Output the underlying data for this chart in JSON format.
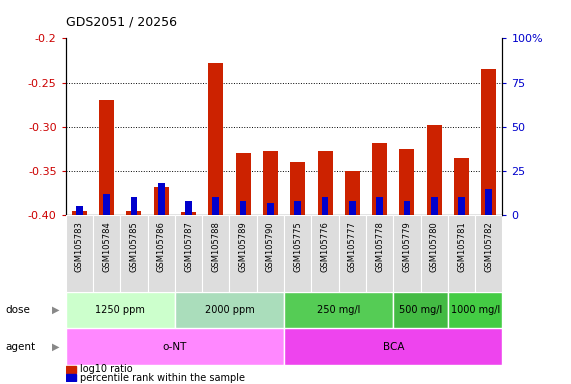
{
  "title": "GDS2051 / 20256",
  "samples": [
    "GSM105783",
    "GSM105784",
    "GSM105785",
    "GSM105786",
    "GSM105787",
    "GSM105788",
    "GSM105789",
    "GSM105790",
    "GSM105775",
    "GSM105776",
    "GSM105777",
    "GSM105778",
    "GSM105779",
    "GSM105780",
    "GSM105781",
    "GSM105782"
  ],
  "log10_ratio": [
    -0.395,
    -0.27,
    -0.395,
    -0.368,
    -0.397,
    -0.228,
    -0.33,
    -0.328,
    -0.34,
    -0.328,
    -0.35,
    -0.318,
    -0.325,
    -0.298,
    -0.335,
    -0.235
  ],
  "percentile_rank": [
    5,
    12,
    10,
    18,
    8,
    10,
    8,
    7,
    8,
    10,
    8,
    10,
    8,
    10,
    10,
    15
  ],
  "ylim_left": [
    -0.4,
    -0.2
  ],
  "ylim_right": [
    0,
    100
  ],
  "yticks_left": [
    -0.4,
    -0.35,
    -0.3,
    -0.25,
    -0.2
  ],
  "yticks_right": [
    0,
    25,
    50,
    75,
    100
  ],
  "ytick_labels_right": [
    "0",
    "25",
    "50",
    "75",
    "100%"
  ],
  "dose_groups": [
    {
      "label": "1250 ppm",
      "start": 0,
      "end": 4,
      "color": "#ccffcc"
    },
    {
      "label": "2000 ppm",
      "start": 4,
      "end": 8,
      "color": "#aaddbb"
    },
    {
      "label": "250 mg/l",
      "start": 8,
      "end": 12,
      "color": "#55cc55"
    },
    {
      "label": "500 mg/l",
      "start": 12,
      "end": 14,
      "color": "#44bb44"
    },
    {
      "label": "1000 mg/l",
      "start": 14,
      "end": 16,
      "color": "#44cc44"
    }
  ],
  "agent_groups": [
    {
      "label": "o-NT",
      "start": 0,
      "end": 8,
      "color": "#ff88ff"
    },
    {
      "label": "BCA",
      "start": 8,
      "end": 16,
      "color": "#ee44ee"
    }
  ],
  "bar_color_red": "#cc2200",
  "bar_color_blue": "#0000cc",
  "axis_label_color_left": "#cc0000",
  "axis_label_color_right": "#0000cc",
  "legend_items": [
    {
      "color": "#cc2200",
      "label": "log10 ratio"
    },
    {
      "color": "#0000cc",
      "label": "percentile rank within the sample"
    }
  ]
}
